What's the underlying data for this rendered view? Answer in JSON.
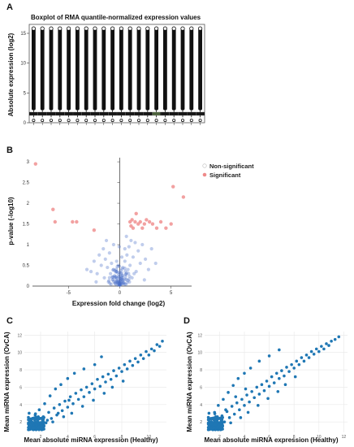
{
  "panels": {
    "a": {
      "label": "A",
      "chart_data": {
        "type": "box",
        "title": "Boxplot of RMA quantile-normalized expression values",
        "xlabel": "",
        "ylabel": "Absolute expression (log2)",
        "ylim": [
          0,
          16.5
        ],
        "yticks": [
          0,
          5,
          10,
          15
        ],
        "n_samples": 20,
        "median": 1.5,
        "q1": 1.25,
        "q3": 1.75,
        "whisker_low": 0.9,
        "whisker_high": 2.1,
        "outlier_max": 15.8,
        "low_outlier": 0.4,
        "series": [
          {
            "values": [
              1.5,
              1.5,
              1.5,
              1.5,
              1.5,
              1.5,
              1.5,
              1.5,
              1.5,
              1.5,
              1.5,
              1.5,
              1.5,
              1.5,
              1.5,
              1.5,
              1.5,
              1.5,
              1.5,
              1.5
            ]
          }
        ],
        "box_colors": [
          "#2e2e2e",
          "#2e2e2e",
          "#2e2e2e",
          "#2e2e2e",
          "#2e2e2e",
          "#2e2e2e",
          "#2e2e2e",
          "#2e2e2e",
          "#2e2e2e",
          "#2e2e2e",
          "#2e2e2e",
          "#2e2e2e",
          "#2e2e2e",
          "#2e2e2e",
          "#9ac47a",
          "#2e2e2e",
          "#2e2e2e",
          "#2e2e2e",
          "#2e2e2e",
          "#2e2e2e"
        ]
      }
    },
    "b": {
      "label": "B",
      "chart_data": {
        "type": "scatter",
        "xlabel": "Expression fold change (log2)",
        "ylabel": "p-value (-log10)",
        "xlim": [
          -8.5,
          7
        ],
        "ylim": [
          0,
          3.1
        ],
        "xticks": [
          -5,
          0,
          5
        ],
        "yticks": [
          0,
          0.5,
          1,
          1.5,
          2,
          2.5,
          3
        ],
        "legend_position": "top-right",
        "series": [
          {
            "name": "Non-significant",
            "color": "#4a6fc8",
            "points": [
              [
                -3.2,
                0.4
              ],
              [
                -2.8,
                0.35
              ],
              [
                -2.5,
                0.6
              ],
              [
                -2.2,
                0.3
              ],
              [
                -2.0,
                0.75
              ],
              [
                -1.8,
                0.5
              ],
              [
                -1.6,
                0.9
              ],
              [
                -1.5,
                0.2
              ],
              [
                -1.4,
                0.65
              ],
              [
                -1.2,
                0.45
              ],
              [
                -1.1,
                0.1
              ],
              [
                -1.0,
                0.8
              ],
              [
                -0.9,
                0.3
              ],
              [
                -0.8,
                0.55
              ],
              [
                -0.7,
                0.15
              ],
              [
                -0.6,
                0.4
              ],
              [
                -0.5,
                0.25
              ],
              [
                -0.4,
                0.05
              ],
              [
                -0.3,
                0.35
              ],
              [
                -0.2,
                0.12
              ],
              [
                -0.1,
                0.22
              ],
              [
                0.0,
                0.05
              ],
              [
                0.1,
                0.3
              ],
              [
                0.2,
                0.18
              ],
              [
                0.3,
                0.45
              ],
              [
                0.4,
                0.08
              ],
              [
                0.5,
                0.6
              ],
              [
                0.6,
                0.28
              ],
              [
                0.7,
                0.75
              ],
              [
                0.8,
                0.4
              ],
              [
                0.9,
                0.95
              ],
              [
                1.0,
                0.5
              ],
              [
                1.1,
                1.1
              ],
              [
                1.2,
                0.2
              ],
              [
                1.3,
                0.7
              ],
              [
                1.5,
                1.05
              ],
              [
                1.6,
                0.35
              ],
              [
                1.8,
                0.85
              ],
              [
                2.0,
                0.55
              ],
              [
                2.2,
                1.0
              ],
              [
                2.5,
                0.65
              ],
              [
                2.8,
                0.4
              ],
              [
                3.1,
                0.9
              ],
              [
                3.5,
                0.55
              ],
              [
                -0.3,
                0.6
              ],
              [
                0.2,
                0.7
              ],
              [
                -0.6,
                1.0
              ],
              [
                0.5,
                0.9
              ],
              [
                -0.15,
                0.5
              ],
              [
                0.35,
                0.15
              ],
              [
                -0.05,
                0.95
              ],
              [
                0.65,
                1.2
              ],
              [
                -1.3,
                1.1
              ],
              [
                1.4,
                0.3
              ],
              [
                -2.3,
                0.1
              ],
              [
                2.4,
                0.15
              ]
            ]
          },
          {
            "name": "Significant",
            "color": "#ef8a8a",
            "points": [
              [
                -8.2,
                2.95
              ],
              [
                -6.5,
                1.85
              ],
              [
                -6.3,
                1.55
              ],
              [
                -4.6,
                1.55
              ],
              [
                -4.2,
                1.55
              ],
              [
                -2.5,
                1.35
              ],
              [
                1.0,
                1.55
              ],
              [
                1.2,
                1.6
              ],
              [
                1.3,
                1.4
              ],
              [
                1.5,
                1.55
              ],
              [
                1.6,
                1.75
              ],
              [
                1.8,
                1.5
              ],
              [
                2.0,
                1.55
              ],
              [
                2.2,
                1.4
              ],
              [
                2.4,
                1.5
              ],
              [
                2.6,
                1.6
              ],
              [
                2.9,
                1.55
              ],
              [
                3.2,
                1.5
              ],
              [
                3.6,
                1.4
              ],
              [
                4.0,
                1.55
              ],
              [
                4.5,
                1.4
              ],
              [
                5.0,
                1.5
              ],
              [
                5.2,
                2.4
              ],
              [
                6.2,
                2.15
              ],
              [
                1.1,
                1.45
              ]
            ]
          }
        ]
      }
    },
    "c": {
      "label": "C",
      "chart_data": {
        "type": "scatter",
        "xlabel": "Mean absolute miRNA expression (Healthy)",
        "ylabel": "Mean miRNA expression (OvCA)",
        "xlim": [
          0.8,
          11.3
        ],
        "ylim": [
          0.8,
          12.4
        ],
        "xticks": [
          2,
          4,
          6,
          8,
          10
        ],
        "yticks": [
          2,
          4,
          6,
          8,
          10,
          12
        ],
        "color": "#1f77b4",
        "points": [
          [
            1.2,
            1.4
          ],
          [
            1.5,
            1.3
          ],
          [
            1.8,
            2.0
          ],
          [
            2.0,
            1.7
          ],
          [
            2.2,
            2.6
          ],
          [
            2.4,
            1.9
          ],
          [
            2.6,
            3.1
          ],
          [
            2.8,
            2.4
          ],
          [
            3.0,
            3.6
          ],
          [
            3.2,
            2.8
          ],
          [
            3.4,
            4.0
          ],
          [
            3.6,
            3.3
          ],
          [
            3.8,
            4.4
          ],
          [
            4.0,
            3.7
          ],
          [
            4.2,
            4.9
          ],
          [
            4.4,
            4.1
          ],
          [
            4.6,
            5.3
          ],
          [
            4.8,
            4.6
          ],
          [
            5.0,
            5.7
          ],
          [
            5.2,
            4.9
          ],
          [
            5.4,
            6.0
          ],
          [
            5.6,
            5.4
          ],
          [
            5.8,
            6.4
          ],
          [
            6.0,
            5.8
          ],
          [
            6.2,
            6.9
          ],
          [
            6.4,
            6.1
          ],
          [
            6.6,
            7.2
          ],
          [
            6.8,
            6.6
          ],
          [
            7.0,
            7.5
          ],
          [
            7.2,
            6.9
          ],
          [
            7.4,
            7.9
          ],
          [
            7.6,
            7.3
          ],
          [
            7.8,
            8.2
          ],
          [
            8.0,
            7.8
          ],
          [
            8.2,
            8.6
          ],
          [
            8.4,
            8.1
          ],
          [
            8.6,
            9.0
          ],
          [
            8.8,
            8.5
          ],
          [
            9.0,
            9.3
          ],
          [
            9.2,
            8.9
          ],
          [
            9.4,
            9.7
          ],
          [
            9.6,
            9.3
          ],
          [
            9.8,
            10.1
          ],
          [
            10.0,
            9.7
          ],
          [
            10.2,
            10.4
          ],
          [
            10.4,
            10.2
          ],
          [
            10.6,
            10.9
          ],
          [
            10.8,
            10.7
          ],
          [
            11.0,
            11.3
          ],
          [
            1.3,
            2.2
          ],
          [
            1.6,
            2.8
          ],
          [
            1.9,
            3.4
          ],
          [
            2.3,
            4.1
          ],
          [
            2.7,
            5.0
          ],
          [
            3.1,
            5.8
          ],
          [
            3.5,
            6.3
          ],
          [
            4.0,
            7.0
          ],
          [
            4.5,
            7.6
          ],
          [
            5.2,
            8.1
          ],
          [
            6.0,
            8.6
          ],
          [
            6.5,
            9.5
          ],
          [
            2.1,
            1.5
          ],
          [
            2.9,
            2.0
          ],
          [
            3.7,
            2.6
          ],
          [
            4.3,
            3.0
          ],
          [
            5.1,
            3.8
          ],
          [
            5.9,
            4.5
          ],
          [
            6.7,
            5.3
          ],
          [
            7.3,
            6.0
          ],
          [
            8.1,
            6.7
          ],
          [
            1.4,
            1.9
          ],
          [
            1.7,
            1.6
          ],
          [
            2.5,
            2.2
          ],
          [
            3.3,
            3.0
          ],
          [
            4.1,
            4.5
          ]
        ]
      }
    },
    "d": {
      "label": "D",
      "chart_data": {
        "type": "scatter",
        "xlabel": "Mean absolute miRNA expression (Healthy)",
        "ylabel": "Mean miRNA expression (OvCA)",
        "xlim": [
          0.8,
          12.3
        ],
        "ylim": [
          0.8,
          12.4
        ],
        "xticks": [
          2,
          4,
          6,
          8,
          10,
          12
        ],
        "yticks": [
          2,
          4,
          6,
          8,
          10,
          12
        ],
        "color": "#1f77b4",
        "points": [
          [
            1.2,
            1.5
          ],
          [
            1.5,
            1.2
          ],
          [
            1.8,
            2.1
          ],
          [
            2.0,
            1.6
          ],
          [
            2.2,
            2.7
          ],
          [
            2.4,
            2.0
          ],
          [
            2.6,
            3.2
          ],
          [
            2.8,
            2.5
          ],
          [
            3.0,
            3.8
          ],
          [
            3.2,
            2.9
          ],
          [
            3.4,
            4.2
          ],
          [
            3.6,
            3.4
          ],
          [
            3.8,
            4.6
          ],
          [
            4.0,
            3.9
          ],
          [
            4.2,
            5.1
          ],
          [
            4.4,
            4.3
          ],
          [
            4.6,
            5.5
          ],
          [
            4.8,
            4.8
          ],
          [
            5.0,
            6.0
          ],
          [
            5.2,
            5.2
          ],
          [
            5.4,
            6.3
          ],
          [
            5.6,
            5.6
          ],
          [
            5.8,
            6.7
          ],
          [
            6.0,
            6.1
          ],
          [
            6.2,
            7.2
          ],
          [
            6.4,
            6.5
          ],
          [
            6.6,
            7.6
          ],
          [
            6.8,
            7.0
          ],
          [
            7.0,
            7.9
          ],
          [
            7.2,
            7.3
          ],
          [
            7.4,
            8.3
          ],
          [
            7.6,
            7.8
          ],
          [
            7.8,
            8.6
          ],
          [
            8.0,
            8.2
          ],
          [
            8.2,
            9.0
          ],
          [
            8.4,
            8.6
          ],
          [
            8.6,
            9.4
          ],
          [
            8.8,
            9.0
          ],
          [
            9.0,
            9.7
          ],
          [
            9.2,
            9.4
          ],
          [
            9.4,
            10.1
          ],
          [
            9.6,
            9.8
          ],
          [
            9.8,
            10.4
          ],
          [
            10.0,
            10.1
          ],
          [
            10.2,
            10.7
          ],
          [
            10.4,
            10.4
          ],
          [
            10.6,
            11.0
          ],
          [
            10.8,
            10.8
          ],
          [
            11.0,
            11.3
          ],
          [
            11.3,
            11.5
          ],
          [
            11.6,
            11.8
          ],
          [
            1.3,
            2.4
          ],
          [
            1.6,
            3.1
          ],
          [
            1.9,
            3.9
          ],
          [
            2.3,
            4.6
          ],
          [
            2.7,
            5.4
          ],
          [
            3.1,
            6.2
          ],
          [
            3.5,
            7.0
          ],
          [
            4.0,
            7.6
          ],
          [
            4.5,
            8.2
          ],
          [
            5.2,
            9.0
          ],
          [
            6.0,
            9.6
          ],
          [
            6.8,
            10.3
          ],
          [
            2.1,
            1.4
          ],
          [
            2.9,
            1.9
          ],
          [
            3.7,
            2.5
          ],
          [
            4.3,
            3.1
          ],
          [
            5.1,
            3.9
          ],
          [
            5.9,
            4.7
          ],
          [
            6.7,
            5.5
          ],
          [
            7.3,
            6.3
          ],
          [
            8.1,
            7.2
          ],
          [
            1.4,
            1.8
          ],
          [
            1.7,
            2.6
          ],
          [
            2.5,
            3.4
          ],
          [
            3.3,
            4.9
          ],
          [
            4.1,
            5.8
          ]
        ]
      }
    }
  }
}
